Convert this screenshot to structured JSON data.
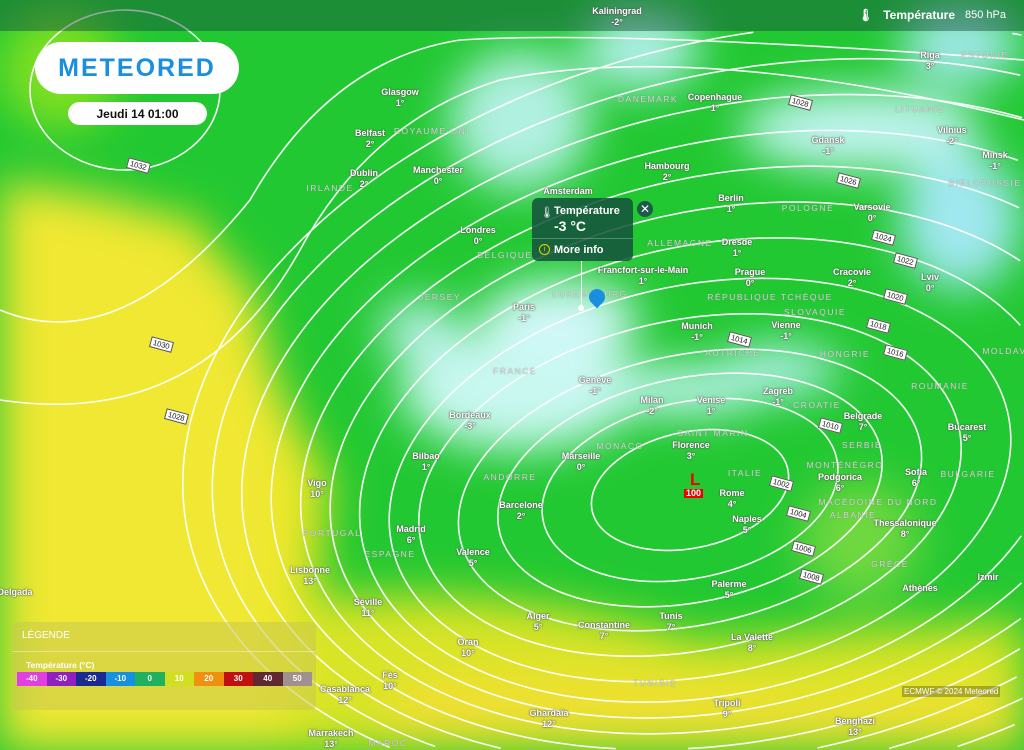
{
  "header": {
    "layer_icon": "thermometer-icon",
    "layer_title": "Température",
    "level": "850 hPa"
  },
  "logo": {
    "text": "METEORED"
  },
  "date": "Jeudi 14 01:00",
  "popup": {
    "title": "Température",
    "value": "-3 °C",
    "more_info": "More info",
    "close_icon": "close-icon"
  },
  "low": {
    "symbol": "L",
    "pressure": "100"
  },
  "isobar_labels": [
    "1032",
    "1030",
    "1028",
    "1028",
    "1026",
    "1024",
    "1022",
    "1020",
    "1018",
    "1016",
    "1014",
    "1010",
    "1008",
    "1006",
    "1004",
    "1002"
  ],
  "cities": [
    {
      "name": "Kaliningrad",
      "temp": "-2°"
    },
    {
      "name": "Riga",
      "temp": "3°"
    },
    {
      "name": "Glasgow",
      "temp": "1°"
    },
    {
      "name": "Belfast",
      "temp": "2°"
    },
    {
      "name": "Manchester",
      "temp": "0°"
    },
    {
      "name": "Dublin",
      "temp": "2°"
    },
    {
      "name": "Copenhague",
      "temp": "1°"
    },
    {
      "name": "Hambourg",
      "temp": "2°"
    },
    {
      "name": "Gdansk",
      "temp": "-1°"
    },
    {
      "name": "Vilnius",
      "temp": "-2°"
    },
    {
      "name": "Minsk",
      "temp": "-1°"
    },
    {
      "name": "Berlin",
      "temp": "1°"
    },
    {
      "name": "Varsovie",
      "temp": "0°"
    },
    {
      "name": "Londres",
      "temp": "0°"
    },
    {
      "name": "Amsterdam",
      "temp": ""
    },
    {
      "name": "Dresde",
      "temp": "1°"
    },
    {
      "name": "Prague",
      "temp": "0°"
    },
    {
      "name": "Cracovie",
      "temp": "2°"
    },
    {
      "name": "Lviv",
      "temp": "0°"
    },
    {
      "name": "Francfort-sur-le-Main",
      "temp": "1°"
    },
    {
      "name": "Paris",
      "temp": "-1°"
    },
    {
      "name": "Munich",
      "temp": "-1°"
    },
    {
      "name": "Vienne",
      "temp": "-1°"
    },
    {
      "name": "Genève",
      "temp": "-1°"
    },
    {
      "name": "Milan",
      "temp": "-2°"
    },
    {
      "name": "Venise",
      "temp": "1°"
    },
    {
      "name": "Zagreb",
      "temp": "-1°"
    },
    {
      "name": "Belgrade",
      "temp": "7°"
    },
    {
      "name": "Bucarest",
      "temp": "5°"
    },
    {
      "name": "Bordeaux",
      "temp": "-3°"
    },
    {
      "name": "Bilbao",
      "temp": "1°"
    },
    {
      "name": "Marseille",
      "temp": "0°"
    },
    {
      "name": "Florence",
      "temp": "3°"
    },
    {
      "name": "Sofia",
      "temp": "6°"
    },
    {
      "name": "Podgorica",
      "temp": "6°"
    },
    {
      "name": "Vigo",
      "temp": "10°"
    },
    {
      "name": "Barcelone",
      "temp": "2°"
    },
    {
      "name": "Rome",
      "temp": "4°"
    },
    {
      "name": "Naples",
      "temp": "5°"
    },
    {
      "name": "Thessalonique",
      "temp": "8°"
    },
    {
      "name": "Madrid",
      "temp": "6°"
    },
    {
      "name": "Valence",
      "temp": "5°"
    },
    {
      "name": "Lisbonne",
      "temp": "13°"
    },
    {
      "name": "Séville",
      "temp": "11°"
    },
    {
      "name": "Palerme",
      "temp": "5°"
    },
    {
      "name": "Athènes",
      "temp": ""
    },
    {
      "name": "Izmir",
      "temp": ""
    },
    {
      "name": "Alger",
      "temp": "5°"
    },
    {
      "name": "Constantine",
      "temp": "7°"
    },
    {
      "name": "Tunis",
      "temp": "7°"
    },
    {
      "name": "La Valette",
      "temp": "8°"
    },
    {
      "name": "Oran",
      "temp": "10°"
    },
    {
      "name": "Casablanca",
      "temp": "12°"
    },
    {
      "name": "Fès",
      "temp": "10°"
    },
    {
      "name": "Ghardaïa",
      "temp": "12°"
    },
    {
      "name": "Tripoli",
      "temp": "9°"
    },
    {
      "name": "Benghazi",
      "temp": "13°"
    },
    {
      "name": "Marrakech",
      "temp": "13°"
    },
    {
      "name": "Delgada",
      "temp": ""
    }
  ],
  "countries": [
    "ESTONIE",
    "LITUANIE",
    "DANEMARK",
    "ROYAUME-UNI",
    "IRLANDE",
    "BIÉLORUSSIE",
    "POLOGNE",
    "ALLEMAGNE",
    "BELGIQUE",
    "LUXEMBOURG",
    "JERSEY",
    "RÉPUBLIQUE TCHÈQUE",
    "SLOVAQUIE",
    "AUTRICHE",
    "HONGRIE",
    "FRANCE",
    "ROUMANIE",
    "CROATIE",
    "SERBIE",
    "MONACO",
    "SAINT MARIN",
    "ITALIE",
    "ANDORRE",
    "MONTÉNÉGRO",
    "BULGARIE",
    "MACÉDOINE DU NORD",
    "ALBANIE",
    "PORTUGAL",
    "ESPAGNE",
    "GRÈCE",
    "TUNISIE",
    "MAROC",
    "MOLDAVIE"
  ],
  "legend": {
    "title": "LÉGENDE",
    "subtitle": "Température (°C)",
    "scale": [
      {
        "label": "-40",
        "color": "#e040e0"
      },
      {
        "label": "-30",
        "color": "#9020c0"
      },
      {
        "label": "-20",
        "color": "#1a2a90"
      },
      {
        "label": "-10",
        "color": "#1890e0"
      },
      {
        "label": "0",
        "color": "#20b060"
      },
      {
        "label": "10",
        "color": "#d0e020"
      },
      {
        "label": "20",
        "color": "#f09010"
      },
      {
        "label": "30",
        "color": "#c01010"
      },
      {
        "label": "40",
        "color": "#602830"
      },
      {
        "label": "50",
        "color": "#a09090"
      }
    ]
  },
  "credit": "ECMWF © 2024 Meteored",
  "colors": {
    "accent": "#1a8fe0",
    "low": "#e00000",
    "map_green": "#22c832",
    "map_yellow": "#e8e820",
    "cold": "#b8f0f0"
  }
}
